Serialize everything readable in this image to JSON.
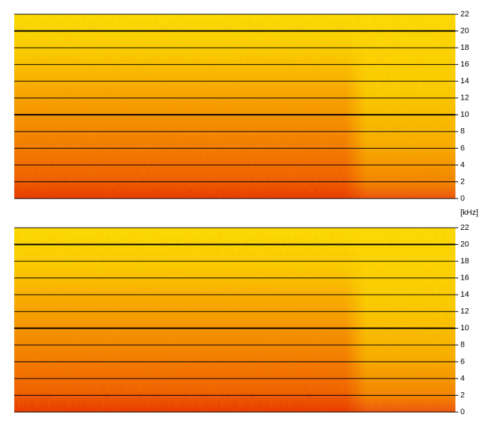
{
  "chart_data": [
    {
      "type": "spectrogram",
      "ylim": [
        0,
        22
      ],
      "yticks": [
        0,
        2,
        4,
        6,
        8,
        10,
        12,
        14,
        16,
        18,
        20,
        22
      ],
      "ylabel": "[kHz]",
      "grid": true
    },
    {
      "type": "spectrogram",
      "ylim": [
        0,
        22
      ],
      "yticks": [
        0,
        2,
        4,
        6,
        8,
        10,
        12,
        14,
        16,
        18,
        20,
        22
      ],
      "grid": true
    }
  ]
}
